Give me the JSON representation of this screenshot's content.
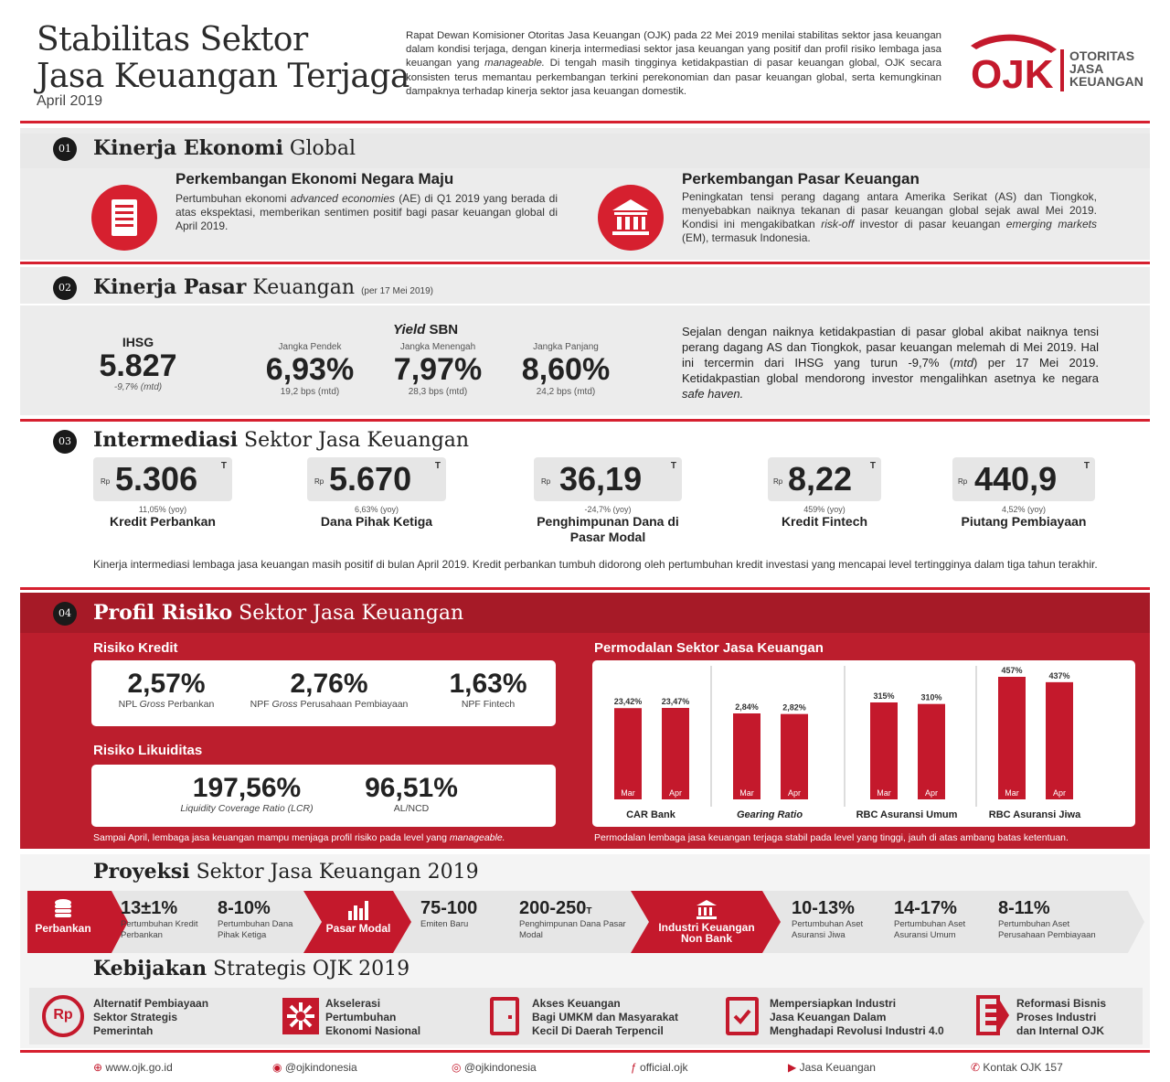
{
  "header": {
    "title_line1": "Stabilitas Sektor",
    "title_line2": "Jasa Keuangan Terjaga",
    "date": "April 2019",
    "intro_a": "Rapat Dewan Komisioner Otoritas Jasa Keuangan (OJK) pada 22 Mei 2019 menilai stabilitas sektor jasa keuangan dalam kondisi terjaga, dengan kinerja intermediasi sektor jasa keuangan yang positif dan profil risiko lembaga jasa keuangan yang ",
    "intro_em": "manageable.",
    "intro_b": " Di tengah masih tingginya ketidakpastian di pasar keuangan global, OJK secara konsisten terus memantau perkembangan terkini perekonomian dan pasar keuangan global, serta kemungkinan dampaknya terhadap kinerja sektor jasa keuangan domestik.",
    "logo_mark": "OJK",
    "logo_line1": "OTORITAS",
    "logo_line2": "JASA",
    "logo_line3": "KEUANGAN"
  },
  "s1": {
    "num": "01",
    "title_bold": "Kinerja Ekonomi",
    "title_rest": " Global",
    "left_title": "Perkembangan Ekonomi Negara Maju",
    "left_a": "Pertumbuhan ekonomi ",
    "left_em": "advanced economies",
    "left_b": " (AE) di Q1 2019 yang berada di atas ekspektasi, memberikan sentimen positif bagi pasar keuangan global di April 2019.",
    "right_title": "Perkembangan Pasar Keuangan",
    "right_a": "Peningkatan tensi perang dagang antara Amerika Serikat (AS) dan Tiongkok, menyebabkan naiknya tekanan di pasar keuangan global sejak awal Mei 2019. Kondisi ini mengakibatkan ",
    "right_em1": "risk-off",
    "right_b": " investor di pasar keuangan ",
    "right_em2": "emerging markets",
    "right_c": " (EM), termasuk Indonesia."
  },
  "s2": {
    "num": "02",
    "title_bold": "Kinerja Pasar",
    "title_rest": " Keuangan",
    "note": "(per 17 Mei 2019)",
    "ihsg_label": "IHSG",
    "ihsg_value": "5.827",
    "ihsg_change": "-9,7% (mtd)",
    "yield_label_em": "Yield",
    "yield_label_rest": " SBN",
    "yields": [
      {
        "label": "Jangka Pendek",
        "value": "6,93%",
        "change": "19,2 bps (mtd)"
      },
      {
        "label": "Jangka Menengah",
        "value": "7,97%",
        "change": "28,3 bps (mtd)"
      },
      {
        "label": "Jangka Panjang",
        "value": "8,60%",
        "change": "24,2 bps (mtd)"
      }
    ],
    "text_a": "Sejalan dengan naiknya ketidakpastian di pasar global akibat naiknya tensi perang dagang AS dan Tiongkok, pasar keuangan melemah di Mei 2019. Hal ini tercermin dari IHSG yang turun -9,7% (",
    "text_em1": "mtd",
    "text_b": ") per 17 Mei 2019. Ketidakpastian global mendorong investor mengalihkan asetnya ke negara ",
    "text_em2": "safe haven."
  },
  "s3": {
    "num": "03",
    "title_bold": "Intermediasi",
    "title_rest": " Sektor Jasa Keuangan",
    "items": [
      {
        "cur": "Rp",
        "value": "5.306",
        "unit": "T",
        "change": "11,05% (yoy)",
        "label": "Kredit Perbankan"
      },
      {
        "cur": "Rp",
        "value": "5.670",
        "unit": "T",
        "change": "6,63% (yoy)",
        "label": "Dana Pihak Ketiga"
      },
      {
        "cur": "Rp",
        "value": "36,19",
        "unit": "T",
        "change": "-24,7% (yoy)",
        "label": "Penghimpunan Dana di Pasar Modal"
      },
      {
        "cur": "Rp",
        "value": "8,22",
        "unit": "T",
        "change": "459% (yoy)",
        "label": "Kredit Fintech"
      },
      {
        "cur": "Rp",
        "value": "440,9",
        "unit": "T",
        "change": "4,52% (yoy)",
        "label": "Piutang Pembiayaan"
      }
    ],
    "note": "Kinerja intermediasi lembaga jasa keuangan masih positif di bulan April 2019. Kredit perbankan tumbuh didorong oleh pertumbuhan kredit investasi yang mencapai level tertingginya dalam tiga tahun terakhir."
  },
  "s4": {
    "num": "04",
    "title_bold": "Profil Risiko",
    "title_rest": " Sektor Jasa Keuangan",
    "credit_title": "Risiko Kredit",
    "credit": [
      {
        "value": "2,57%",
        "label_a": "NPL ",
        "label_em": "Gross",
        "label_b": " Perbankan"
      },
      {
        "value": "2,76%",
        "label_a": "NPF ",
        "label_em": "Gross",
        "label_b": " Perusahaan Pembiayaan"
      },
      {
        "value": "1,63%",
        "label_a": "NPF Fintech",
        "label_em": "",
        "label_b": ""
      }
    ],
    "liq_title": "Risiko Likuiditas",
    "liq": [
      {
        "value": "197,56%",
        "label": "Liquidity Coverage Ratio (LCR)"
      },
      {
        "value": "96,51%",
        "label": "AL/NCD"
      }
    ],
    "left_note_a": "Sampai April, lembaga jasa keuangan mampu menjaga profil risiko pada level yang ",
    "left_note_em": "manageable.",
    "cap_title": "Permodalan Sektor Jasa Keuangan",
    "right_note": "Permodalan lembaga jasa keuangan terjaga stabil pada level yang tinggi, jauh di atas ambang batas ketentuan."
  },
  "chart_data": [
    {
      "type": "bar",
      "title": "CAR Bank",
      "categories": [
        "Mar",
        "Apr"
      ],
      "values": [
        23.42,
        23.47
      ],
      "labels": [
        "23,42%",
        "23,47%"
      ]
    },
    {
      "type": "bar",
      "title": "Gearing Ratio",
      "categories": [
        "Mar",
        "Apr"
      ],
      "values": [
        2.84,
        2.82
      ],
      "labels": [
        "2,84%",
        "2,82%"
      ]
    },
    {
      "type": "bar",
      "title": "RBC Asuransi Umum",
      "categories": [
        "Mar",
        "Apr"
      ],
      "values": [
        315,
        310
      ],
      "labels": [
        "315%",
        "310%"
      ]
    },
    {
      "type": "bar",
      "title": "RBC Asuransi Jiwa",
      "categories": [
        "Mar",
        "Apr"
      ],
      "values": [
        457,
        437
      ],
      "labels": [
        "457%",
        "437%"
      ]
    }
  ],
  "s5": {
    "title_bold": "Proyeksi",
    "title_rest": " Sektor Jasa Keuangan 2019",
    "seg1": "Perbankan",
    "seg1_items": [
      {
        "value": "13±1%",
        "label": "Pertumbuhan Kredit Perbankan"
      },
      {
        "value": "8-10%",
        "label": "Pertumbuhan Dana Pihak Ketiga"
      }
    ],
    "seg2": "Pasar Modal",
    "seg2_items": [
      {
        "value": "75-100",
        "label": "Emiten Baru"
      },
      {
        "value": "200-250",
        "unit": "T",
        "label": "Penghimpunan Dana Pasar Modal"
      }
    ],
    "seg3_line1": "Industri Keuangan",
    "seg3_line2": "Non Bank",
    "seg3_items": [
      {
        "value": "10-13%",
        "label": "Pertumbuhan Aset Asuransi Jiwa"
      },
      {
        "value": "14-17%",
        "label": "Pertumbuhan Aset Asuransi Umum"
      },
      {
        "value": "8-11%",
        "label": "Pertumbuhan Aset Perusahaan Pembiayaan"
      }
    ]
  },
  "s6": {
    "title_bold": "Kebijakan",
    "title_rest": " Strategis OJK 2019",
    "items": [
      {
        "icon": "rp-icon",
        "line1": "Alternatif Pembiayaan",
        "line2": "Sektor Strategis",
        "line3": "Pemerintah"
      },
      {
        "icon": "burst-icon",
        "line1": "Akselerasi",
        "line2": "Pertumbuhan",
        "line3": "Ekonomi Nasional"
      },
      {
        "icon": "door-icon",
        "line1": "Akses Keuangan",
        "line2": "Bagi UMKM dan Masyarakat",
        "line3": "Kecil Di Daerah Terpencil"
      },
      {
        "icon": "checkbox-icon",
        "line1": "Mempersiapkan Industri",
        "line2": "Jasa Keuangan Dalam",
        "line3": "Menghadapi Revolusi Industri 4.0"
      },
      {
        "icon": "exit-arrow-icon",
        "line1": "Reformasi Bisnis",
        "line2": "Proses Industri",
        "line3": "dan Internal OJK"
      }
    ]
  },
  "footer": {
    "web": "www.ojk.go.id",
    "twitter": "@ojkindonesia",
    "instagram": "@ojkindonesia",
    "facebook": "official.ojk",
    "youtube": "Jasa Keuangan",
    "phone": "Kontak OJK 157"
  },
  "colors": {
    "accent": "#d6202f",
    "dark_red": "#b81c2b",
    "band": "#ececec"
  }
}
